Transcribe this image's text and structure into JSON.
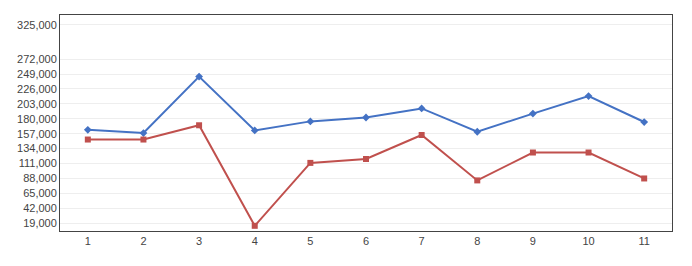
{
  "chart_data": {
    "type": "line",
    "categories": [
      "1",
      "2",
      "3",
      "4",
      "5",
      "6",
      "7",
      "8",
      "9",
      "10",
      "11"
    ],
    "series": [
      {
        "color": "#4472C4",
        "marker": "diamond",
        "values": [
          163000,
          158000,
          245000,
          162000,
          176000,
          182000,
          196000,
          160000,
          188000,
          215000,
          175000
        ]
      },
      {
        "color": "#C0504D",
        "marker": "square",
        "values": [
          148000,
          148000,
          170000,
          15000,
          112000,
          118000,
          155000,
          85000,
          128000,
          128000,
          88000
        ]
      }
    ],
    "ylim": [
      7000,
      340000
    ],
    "yticks": [
      {
        "value": 19000,
        "label": "19,000"
      },
      {
        "value": 42000,
        "label": "42,000"
      },
      {
        "value": 65000,
        "label": "65,000"
      },
      {
        "value": 88000,
        "label": "88,000"
      },
      {
        "value": 111000,
        "label": "111,000"
      },
      {
        "value": 134000,
        "label": "134,000"
      },
      {
        "value": 157000,
        "label": "157,000"
      },
      {
        "value": 180000,
        "label": "180,000"
      },
      {
        "value": 203000,
        "label": "203,000"
      },
      {
        "value": 226000,
        "label": "226,000"
      },
      {
        "value": 249000,
        "label": "249,000"
      },
      {
        "value": 272000,
        "label": "272,000"
      },
      {
        "value": 325000,
        "label": "325,000"
      }
    ],
    "grid": true
  }
}
